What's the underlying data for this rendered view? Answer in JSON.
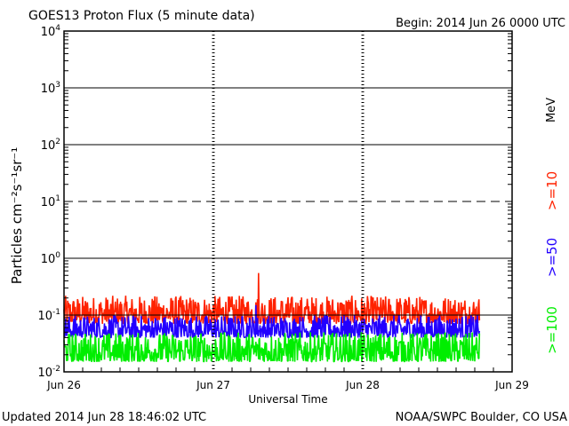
{
  "title": "GOES13 Proton Flux (5 minute data)",
  "begin_label": "Begin: 2014 Jun 26 0000 UTC",
  "updated_label": "Updated 2014 Jun 28 18:46:02 UTC",
  "credit_label": "NOAA/SWPC Boulder, CO USA",
  "colors": {
    "ge10": "#ff2200",
    "ge50": "#2200ff",
    "ge100": "#00ee00",
    "frame": "#000000"
  },
  "chart_data": {
    "type": "line",
    "title": "GOES13 Proton Flux (5 minute data)",
    "xlabel": "Universal Time",
    "ylabel": "Particles cm⁻²s⁻¹sr⁻¹",
    "y_scale": "log",
    "ylim": [
      0.01,
      10000
    ],
    "xlim": [
      "2014-06-26 00:00",
      "2014-06-29 00:00"
    ],
    "x_ticks": [
      "Jun 26",
      "Jun 27",
      "Jun 28",
      "Jun 29"
    ],
    "y_ticks": [
      {
        "base": "10",
        "exp": "-2"
      },
      {
        "base": "10",
        "exp": "-1"
      },
      {
        "base": "10",
        "exp": "0"
      },
      {
        "base": "10",
        "exp": "1"
      },
      {
        "base": "10",
        "exp": "2"
      },
      {
        "base": "10",
        "exp": "3"
      },
      {
        "base": "10",
        "exp": "4"
      }
    ],
    "threshold_lines": [
      {
        "value": 10,
        "style": "dashed"
      }
    ],
    "units_label": "MeV",
    "legend_placement": "right",
    "series": [
      {
        "name": ">=10",
        "color": "#ff2200",
        "approx_range": [
          0.07,
          0.22
        ],
        "peak": {
          "time": "2014-06-27 07:15",
          "value": 0.55
        }
      },
      {
        "name": ">=50",
        "color": "#2200ff",
        "approx_range": [
          0.04,
          0.1
        ],
        "peak": {
          "time": "2014-06-27 06:50",
          "value": 0.15
        }
      },
      {
        "name": ">=100",
        "color": "#00ee00",
        "approx_range": [
          0.015,
          0.05
        ]
      }
    ],
    "data_end": "2014-06-28 18:45"
  }
}
